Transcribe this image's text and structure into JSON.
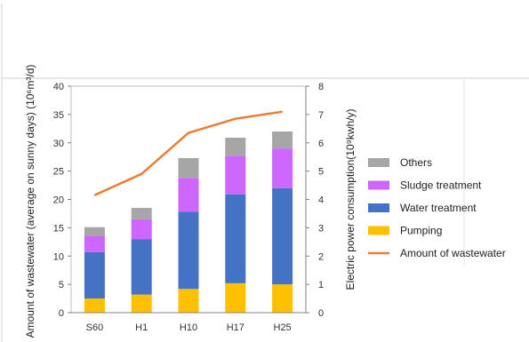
{
  "chart_data": {
    "type": "bar",
    "stacked": true,
    "categories": [
      "S60",
      "H1",
      "H10",
      "H17",
      "H25"
    ],
    "series": [
      {
        "name": "Pumping",
        "kind": "bar",
        "color": "#FFC000",
        "values": [
          2.5,
          3.2,
          4.2,
          5.2,
          5.0
        ]
      },
      {
        "name": "Water treatment",
        "kind": "bar",
        "color": "#4472C4",
        "values": [
          8.2,
          9.8,
          13.6,
          15.7,
          17.0
        ]
      },
      {
        "name": "Sludge treatment",
        "kind": "bar",
        "color": "#CC66FF",
        "values": [
          2.9,
          3.5,
          6.0,
          6.8,
          7.0
        ]
      },
      {
        "name": "Others",
        "kind": "bar",
        "color": "#A6A6A6",
        "values": [
          1.5,
          2.0,
          3.5,
          3.2,
          3.0
        ]
      },
      {
        "name": "Amount of wastewater",
        "kind": "line",
        "axis": "right",
        "color": "#ED7D31",
        "values": [
          4.15,
          4.9,
          6.35,
          6.85,
          7.1
        ]
      }
    ],
    "ylabel": "Amount  of wastewater (average on sunny days) (10⁶m³/d)",
    "y2label": "Electric power consumption(10⁹kwh/y)",
    "ylim": [
      0,
      40
    ],
    "y2lim": [
      0,
      8
    ],
    "yticks": [
      0,
      5,
      10,
      15,
      20,
      25,
      30,
      35,
      40
    ],
    "y2ticks": [
      0,
      1,
      2,
      3,
      4,
      5,
      6,
      7,
      8
    ],
    "legend_order": [
      "Others",
      "Sludge treatment",
      "Water treatment",
      "Pumping",
      "Amount of wastewater"
    ],
    "legend_position": "right",
    "grid": false
  }
}
